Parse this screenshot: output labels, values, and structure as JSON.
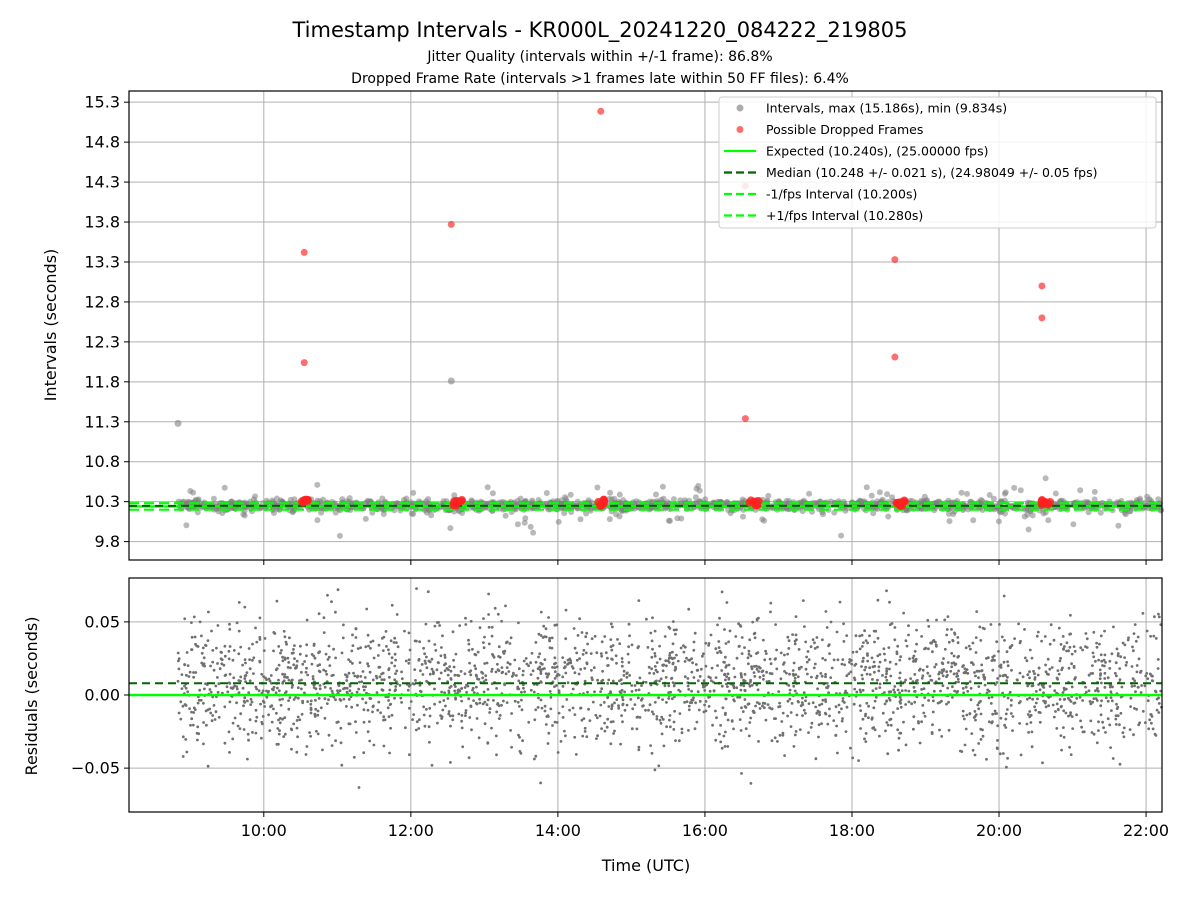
{
  "chart_data": [
    {
      "type": "scatter",
      "title": "Timestamp Intervals - KR000L_20241220_084222_219805",
      "subtitle_lines": [
        "Jitter Quality (intervals within +/-1 frame): 86.8%",
        "Dropped Frame Rate (intervals >1 frames late within 50 FF files): 6.4%"
      ],
      "xlabel": "",
      "ylabel": "Intervals (seconds)",
      "xlim": [
        "08:10",
        "22:13"
      ],
      "ylim": [
        9.57,
        15.44
      ],
      "yticks": [
        "9.8",
        "10.3",
        "10.8",
        "11.3",
        "11.8",
        "12.3",
        "12.8",
        "13.3",
        "13.8",
        "14.3",
        "14.8",
        "15.3"
      ],
      "grid": true,
      "legend_position": "top-right",
      "legend": [
        {
          "label": "Intervals, max (15.186s), min (9.834s)",
          "kind": "marker",
          "color": "#808080"
        },
        {
          "label": "Possible Dropped Frames",
          "kind": "marker",
          "color": "#ff2020"
        },
        {
          "label": "Expected (10.240s), (25.00000 fps)",
          "kind": "solid",
          "color": "#00ff00"
        },
        {
          "label": "Median (10.248 +/- 0.021 s), (24.98049 +/- 0.05 fps)",
          "kind": "dashed",
          "color": "#006400"
        },
        {
          "label": "-1/fps Interval (10.200s)",
          "kind": "dashed",
          "color": "#00ff00"
        },
        {
          "label": "+1/fps Interval (10.280s)",
          "kind": "dashed",
          "color": "#00ff00"
        }
      ],
      "reference_lines": {
        "expected": 10.24,
        "median": 10.248,
        "minus_1fps": 10.2,
        "plus_1fps": 10.28
      },
      "series": [
        {
          "name": "Intervals, max (15.186s), min (9.834s)",
          "color": "#808080",
          "points": [
            {
              "x": "08:50",
              "y": 11.28
            },
            {
              "x": "12:33",
              "y": 11.81
            }
          ],
          "dense_band": {
            "x_range": [
              "08:50",
              "22:13"
            ],
            "y_center": 10.25,
            "spread": 0.35,
            "min": 9.834,
            "max": 10.7
          }
        },
        {
          "name": "Possible Dropped Frames",
          "color": "#ff2020",
          "points": [
            {
              "x": "10:33",
              "y": 13.42
            },
            {
              "x": "10:33",
              "y": 12.04
            },
            {
              "x": "12:33",
              "y": 13.77
            },
            {
              "x": "14:35",
              "y": 15.186
            },
            {
              "x": "16:33",
              "y": 14.25
            },
            {
              "x": "16:33",
              "y": 11.34
            },
            {
              "x": "18:35",
              "y": 13.33
            },
            {
              "x": "18:35",
              "y": 12.11
            },
            {
              "x": "20:35",
              "y": 13.0
            },
            {
              "x": "20:35",
              "y": 12.6
            }
          ],
          "clusters_near_baseline": [
            "10:35",
            "12:38",
            "14:37",
            "16:40",
            "18:40",
            "20:38"
          ]
        }
      ]
    },
    {
      "type": "scatter",
      "title": "",
      "xlabel": "Time (UTC)",
      "ylabel": "Residuals (seconds)",
      "xlim": [
        "08:10",
        "22:13"
      ],
      "ylim": [
        -0.08,
        0.08
      ],
      "xticks": [
        "10:00",
        "12:00",
        "14:00",
        "16:00",
        "18:00",
        "20:00",
        "22:00"
      ],
      "yticks": [
        "−0.05",
        "0.00",
        "0.05"
      ],
      "grid": true,
      "reference_lines": {
        "expected": 0.0,
        "median": 0.008
      },
      "series": [
        {
          "name": "Residuals",
          "color": "#707070",
          "dense_band": {
            "x_range": [
              "08:50",
              "22:13"
            ],
            "y_center": 0.008,
            "spread": 0.022,
            "min": -0.08,
            "max": 0.08
          }
        }
      ]
    }
  ]
}
